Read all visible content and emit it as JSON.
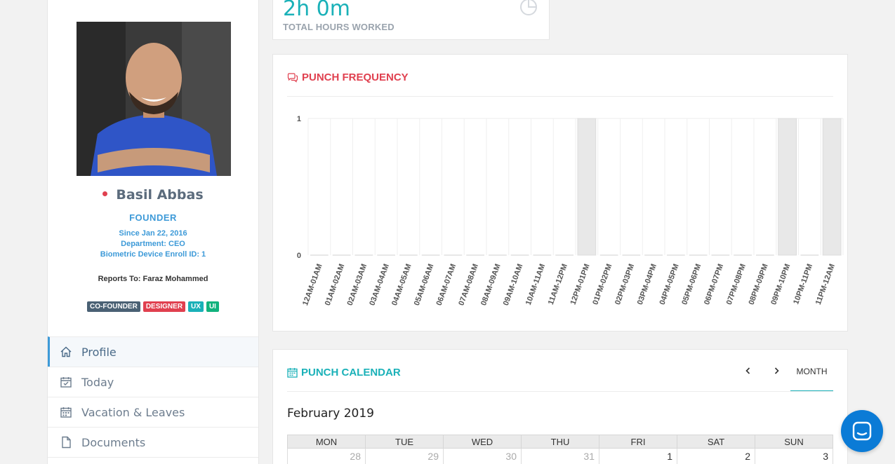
{
  "profile": {
    "name": "Basil Abbas",
    "role": "FOUNDER",
    "since": "Since Jan 22, 2016",
    "department": "Department: CEO",
    "biometric": "Biometric Device Enroll ID: 1",
    "reports_to": "Reports To: Faraz Mohammed",
    "status_color": "#e0404f",
    "tags": [
      {
        "label": "CO-FOUNDER",
        "color": "#4a6174"
      },
      {
        "label": "DESIGNER",
        "color": "#e0404f"
      },
      {
        "label": "UX",
        "color": "#1ab1b8"
      },
      {
        "label": "UI",
        "color": "#12b27d"
      }
    ]
  },
  "nav": {
    "items": [
      {
        "label": "Profile",
        "icon": "home-icon",
        "active": true
      },
      {
        "label": "Today",
        "icon": "calendar-check-icon",
        "active": false
      },
      {
        "label": "Vacation & Leaves",
        "icon": "calendar-icon",
        "active": false
      },
      {
        "label": "Documents",
        "icon": "document-icon",
        "active": false
      }
    ]
  },
  "stats": {
    "total_hours_value": "2h 0m",
    "total_hours_label": "TOTAL HOURS WORKED",
    "icon": "pie-chart-icon"
  },
  "punch_frequency": {
    "title": "PUNCH FREQUENCY",
    "icon": "comments-icon",
    "title_color": "#e0404f"
  },
  "chart_data": {
    "type": "bar",
    "title": "",
    "xlabel": "",
    "ylabel": "",
    "ylim": [
      0,
      1
    ],
    "yticks": [
      "0",
      "1"
    ],
    "categories": [
      "12AM-01AM",
      "01AM-02AM",
      "02AM-03AM",
      "03AM-04AM",
      "04AM-05AM",
      "05AM-06AM",
      "06AM-07AM",
      "07AM-08AM",
      "08AM-09AM",
      "09AM-10AM",
      "10AM-11AM",
      "11AM-12PM",
      "12PM-01PM",
      "01PM-02PM",
      "02PM-03PM",
      "03PM-04PM",
      "04PM-05PM",
      "05PM-06PM",
      "06PM-07PM",
      "07PM-08PM",
      "08PM-09PM",
      "09PM-10PM",
      "10PM-11PM",
      "11PM-12AM"
    ],
    "values": [
      0,
      0,
      0,
      0,
      0,
      0,
      0,
      0,
      0,
      0,
      0,
      0,
      1,
      0,
      0,
      0,
      0,
      0,
      0,
      0,
      0,
      1,
      0,
      1
    ],
    "bar_color": "#e8e8e8",
    "grid": true
  },
  "calendar": {
    "title": "PUNCH CALENDAR",
    "icon": "calendar-icon",
    "title_color": "#1ab1b8",
    "prev_label": "‹",
    "next_label": "›",
    "view_label": "MONTH",
    "month_title": "February 2019",
    "weekdays": [
      "MON",
      "TUE",
      "WED",
      "THU",
      "FRI",
      "SAT",
      "SUN"
    ],
    "first_week": [
      {
        "day": "28",
        "other": true
      },
      {
        "day": "29",
        "other": true
      },
      {
        "day": "30",
        "other": true
      },
      {
        "day": "31",
        "other": true
      },
      {
        "day": "1",
        "other": false
      },
      {
        "day": "2",
        "other": false
      },
      {
        "day": "3",
        "other": false
      }
    ]
  },
  "chat": {
    "icon": "chat-icon",
    "color": "#0b7bd6"
  }
}
